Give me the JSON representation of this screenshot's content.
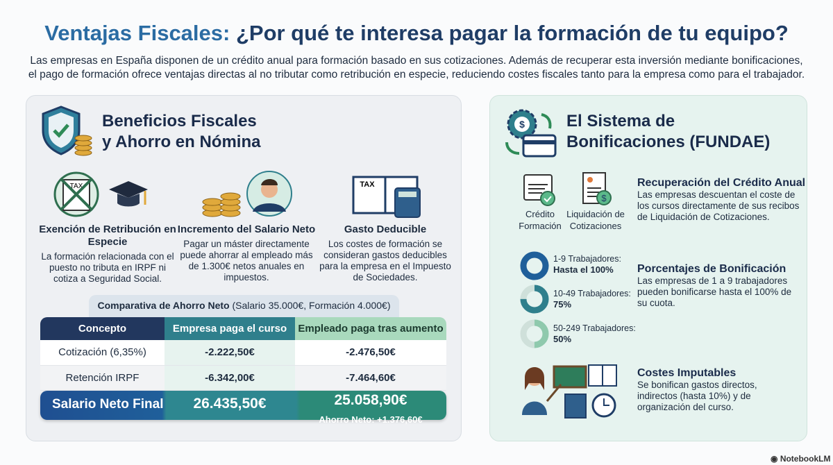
{
  "header": {
    "title_highlight": "Ventajas Fiscales:",
    "title_rest": " ¿Por qué te interesa pagar la formación de tu equipo?",
    "subtitle_1": "Las empresas en España disponen de un crédito anual para formación basado en sus cotizaciones. Además de recuperar esta inversión mediante bonificaciones,",
    "subtitle_2": "el pago de formación ofrece ventajas directas al no tributar como retribución en especie, reduciendo costes fiscales tanto para la empresa como para el trabajador."
  },
  "left": {
    "title_1": "Beneficios Fiscales",
    "title_2": "y Ahorro en Nómina",
    "items": [
      {
        "heading": "Exención de Retribución en Especie",
        "text": "La formación relacionada con el puesto no tributa en IRPF ni cotiza a Seguridad Social.",
        "icon": "tax-crossed-icon"
      },
      {
        "heading": "Incremento del Salario Neto",
        "text": "Pagar un máster directamente puede ahorrar al empleado más de 1.300€ netos anuales en impuestos.",
        "icon": "coins-employee-icon"
      },
      {
        "heading": "Gasto Deducible",
        "text": "Los costes de formación se consideran gastos deducibles para la empresa en el Impuesto de Sociedades.",
        "icon": "tax-book-calculator-icon"
      }
    ],
    "tax_icon_text": "TAX",
    "comparison": {
      "label_bold": "Comparativa de Ahorro Neto",
      "label_rest": " (Salario 35.000€, Formación 4.000€)",
      "headers": [
        "Concepto",
        "Empresa paga el curso",
        "Empleado paga tras aumento"
      ],
      "rows": [
        [
          "Cotización (6,35%)",
          "-2.222,50€",
          "-2.476,50€"
        ],
        [
          "Retención IRPF",
          "-6.342,00€",
          "-7.464,60€"
        ]
      ],
      "final": {
        "label": "Salario Neto Final",
        "empresa": "26.435,50€",
        "empleado": "25.058,90€",
        "ahorro": "Ahorro Neto: +1.376,60€"
      }
    }
  },
  "right": {
    "title_1": "El Sistema de",
    "title_2": "Bonificaciones (FUNDAE)",
    "icon_labels": {
      "credito": "Crédito Formación",
      "liquidacion": "Liquidación de Cotizaciones"
    },
    "recuperacion": {
      "heading": "Recuperación del Crédito Anual",
      "text": "Las empresas descuentan el coste de los cursos directamente de sus recibos de Liquidación de Cotizaciones."
    },
    "tiers": [
      {
        "label": "1-9 Trabajadores:",
        "value": "Hasta el 100%",
        "percent": 100,
        "color": "#1f5f9a"
      },
      {
        "label": "10-49 Trabajadores:",
        "value": "75%",
        "percent": 75,
        "color": "#2f7f8c"
      },
      {
        "label": "50-249 Trabajadores:",
        "value": "50%",
        "percent": 50,
        "color": "#8fc9ad"
      }
    ],
    "porcentajes": {
      "heading": "Porcentajes de Bonificación",
      "text": "Las empresas de 1 a 9 trabajadores pueden bonificarse hasta el 100% de su cuota."
    },
    "costes": {
      "heading": "Costes Imputables",
      "text": "Se bonifican gastos directos, indirectos (hasta 10%) y de organización del curso."
    }
  },
  "footer": {
    "brand": "NotebookLM"
  }
}
